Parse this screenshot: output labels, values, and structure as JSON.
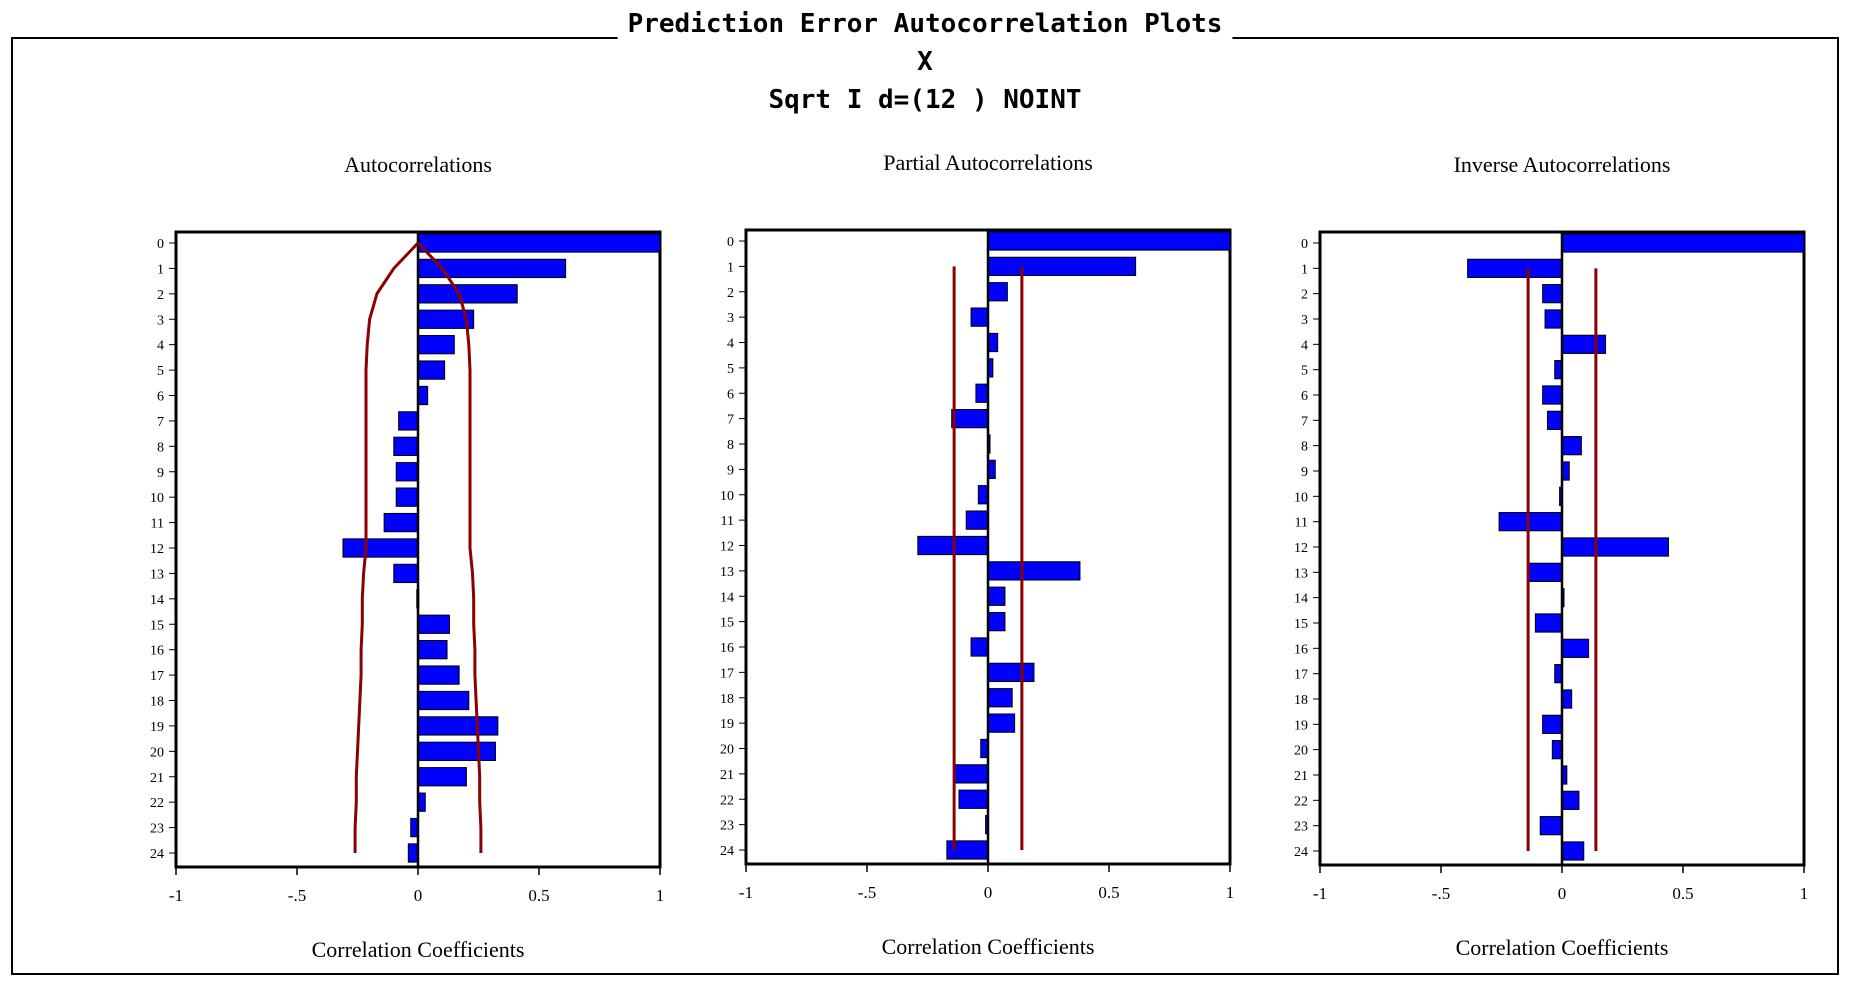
{
  "header": {
    "title": "Prediction Error Autocorrelation Plots",
    "subtitle": "X",
    "model": "Sqrt I d=(12 ) NOINT"
  },
  "colors": {
    "bar": "#0000ff",
    "bar_edge": "#000000",
    "confidence_band": "#8b0000",
    "axes": "#000000"
  },
  "chart_data": [
    {
      "type": "bar",
      "orientation": "horizontal",
      "title": "Autocorrelations",
      "xlabel": "Correlation Coefficients",
      "xlim": [
        -1,
        1
      ],
      "xticks": [
        "-1",
        "-.5",
        "0",
        "0.5",
        "1"
      ],
      "lags": [
        "0",
        "1",
        "2",
        "3",
        "4",
        "5",
        "6",
        "7",
        "8",
        "9",
        "10",
        "11",
        "12",
        "13",
        "14",
        "15",
        "16",
        "17",
        "18",
        "19",
        "20",
        "21",
        "22",
        "23",
        "24"
      ],
      "values": [
        1.0,
        0.61,
        0.41,
        0.23,
        0.15,
        0.11,
        0.04,
        -0.08,
        -0.1,
        -0.09,
        -0.09,
        -0.14,
        -0.31,
        -0.1,
        -0.005,
        0.13,
        0.12,
        0.17,
        0.21,
        0.33,
        0.32,
        0.2,
        0.03,
        -0.03,
        -0.04
      ],
      "band": {
        "kind": "curve",
        "upper": [
          0.0,
          0.1,
          0.17,
          0.2,
          0.21,
          0.215,
          0.215,
          0.215,
          0.215,
          0.215,
          0.215,
          0.215,
          0.215,
          0.225,
          0.23,
          0.23,
          0.235,
          0.235,
          0.24,
          0.245,
          0.25,
          0.255,
          0.255,
          0.26,
          0.26
        ]
      }
    },
    {
      "type": "bar",
      "orientation": "horizontal",
      "title": "Partial Autocorrelations",
      "xlabel": "Correlation Coefficients",
      "xlim": [
        -1,
        1
      ],
      "xticks": [
        "-1",
        "-.5",
        "0",
        "0.5",
        "1"
      ],
      "lags": [
        "0",
        "1",
        "2",
        "3",
        "4",
        "5",
        "6",
        "7",
        "8",
        "9",
        "10",
        "11",
        "12",
        "13",
        "14",
        "15",
        "16",
        "17",
        "18",
        "19",
        "20",
        "21",
        "22",
        "23",
        "24"
      ],
      "values": [
        1.0,
        0.61,
        0.08,
        -0.07,
        0.04,
        0.02,
        -0.05,
        -0.15,
        0.0,
        0.03,
        -0.04,
        -0.09,
        -0.29,
        0.38,
        0.07,
        0.07,
        -0.07,
        0.19,
        0.1,
        0.11,
        -0.03,
        -0.14,
        -0.12,
        -0.01,
        -0.17
      ],
      "band": {
        "kind": "constant",
        "value": 0.14
      }
    },
    {
      "type": "bar",
      "orientation": "horizontal",
      "title": "Inverse Autocorrelations",
      "xlabel": "Correlation Coefficients",
      "xlim": [
        -1,
        1
      ],
      "xticks": [
        "-1",
        "-.5",
        "0",
        "0.5",
        "1"
      ],
      "lags": [
        "0",
        "1",
        "2",
        "3",
        "4",
        "5",
        "6",
        "7",
        "8",
        "9",
        "10",
        "11",
        "12",
        "13",
        "14",
        "15",
        "16",
        "17",
        "18",
        "19",
        "20",
        "21",
        "22",
        "23",
        "24"
      ],
      "values": [
        1.0,
        -0.39,
        -0.08,
        -0.07,
        0.18,
        -0.03,
        -0.08,
        -0.06,
        0.08,
        0.03,
        -0.01,
        -0.26,
        0.44,
        -0.14,
        0.0,
        -0.11,
        0.11,
        -0.03,
        0.04,
        -0.08,
        -0.04,
        0.02,
        0.07,
        -0.09,
        0.09
      ],
      "band": {
        "kind": "constant",
        "value": 0.14
      }
    }
  ]
}
